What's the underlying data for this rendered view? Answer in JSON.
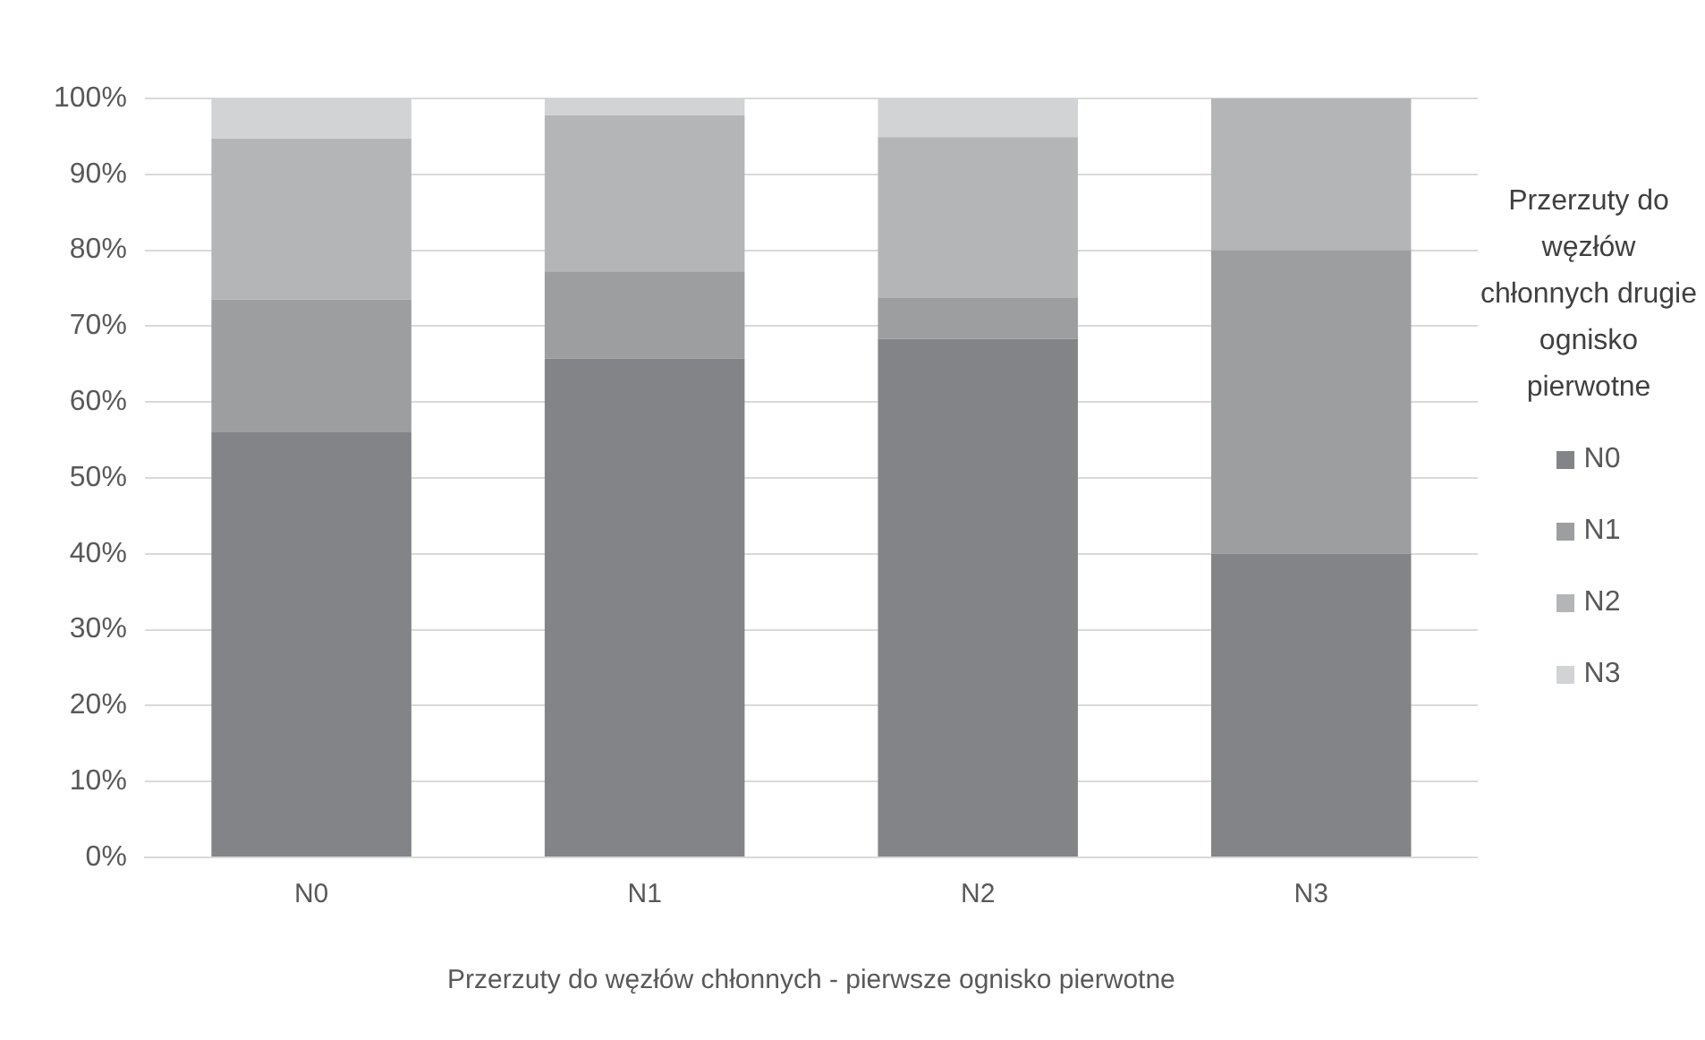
{
  "chart_data": {
    "type": "bar",
    "stacked": true,
    "xlabel": "Przerzuty do węzłów chłonnych - pierwsze ognisko pierwotne",
    "legend_title": "Przerzuty do węzłów chłonnych drugie ognisko pierwotne",
    "legend": "right",
    "grid": "y",
    "categories": [
      "N0",
      "N1",
      "N2",
      "N3"
    ],
    "series": [
      {
        "name": "N0",
        "color": "#838487",
        "values": [
          56,
          65.7,
          68.3,
          40
        ]
      },
      {
        "name": "N1",
        "color": "#9d9ea0",
        "values": [
          17.5,
          11.5,
          5.4,
          40
        ]
      },
      {
        "name": "N2",
        "color": "#b4b5b7",
        "values": [
          21.2,
          20.6,
          21.2,
          20
        ]
      },
      {
        "name": "N3",
        "color": "#d2d3d5",
        "values": [
          5.3,
          2.2,
          5.1,
          0
        ]
      }
    ],
    "ylim": [
      0,
      100
    ],
    "yticks": [
      {
        "value": 0,
        "label": "0%"
      },
      {
        "value": 10,
        "label": "10%"
      },
      {
        "value": 20,
        "label": "20%"
      },
      {
        "value": 30,
        "label": "30%"
      },
      {
        "value": 40,
        "label": "40%"
      },
      {
        "value": 50,
        "label": "50%"
      },
      {
        "value": 60,
        "label": "60%"
      },
      {
        "value": 70,
        "label": "70%"
      },
      {
        "value": 80,
        "label": "80%"
      },
      {
        "value": 90,
        "label": "90%"
      },
      {
        "value": 100,
        "label": "100%"
      }
    ]
  }
}
